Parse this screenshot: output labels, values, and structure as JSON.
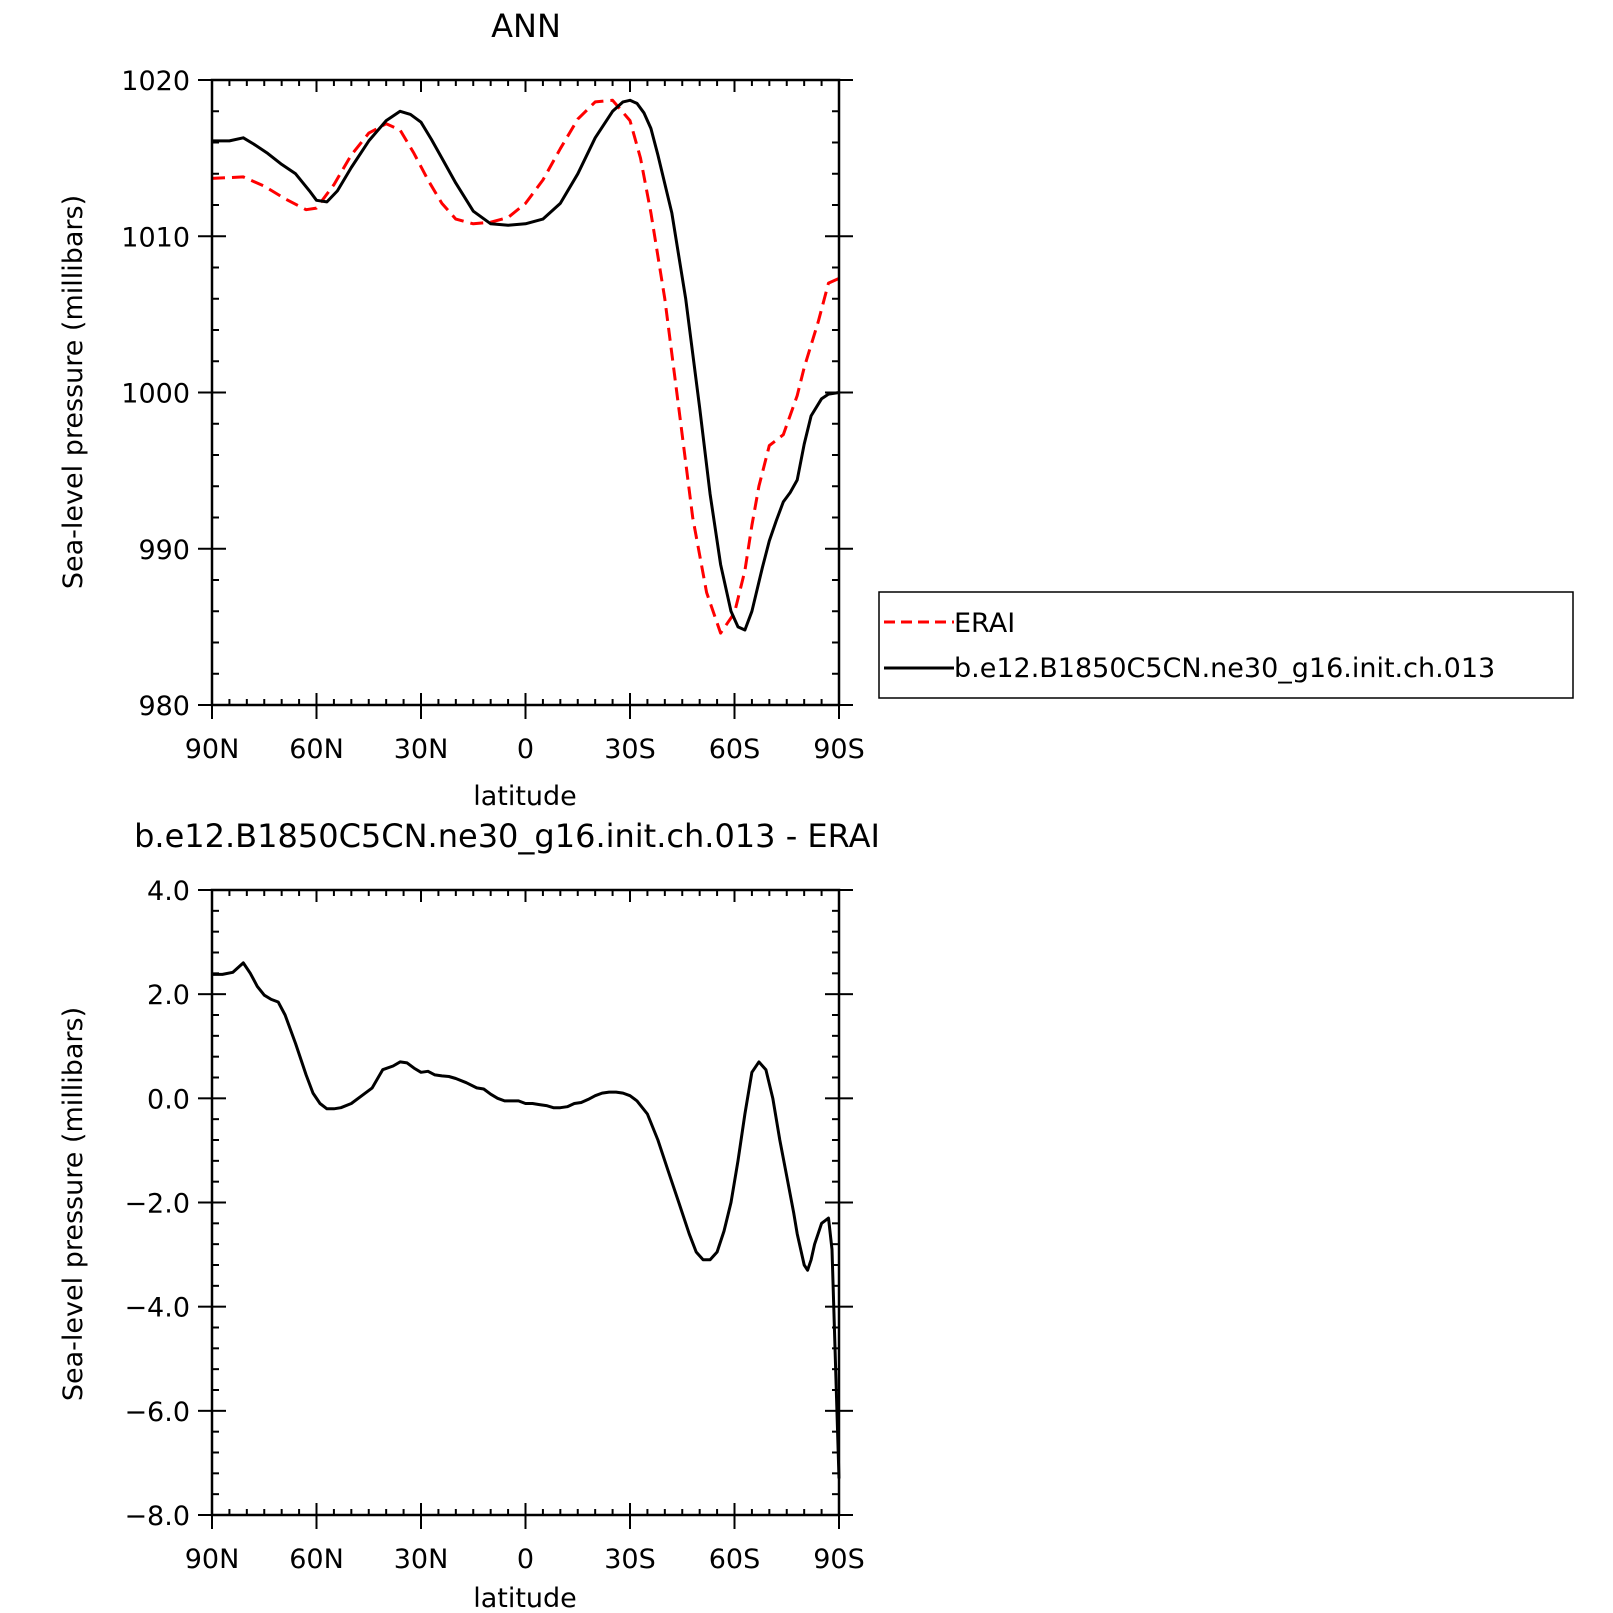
{
  "chart_data": [
    {
      "type": "line",
      "title": "ANN",
      "xlabel": "latitude",
      "ylabel": "Sea-level pressure (millibars)",
      "xlim": [
        90,
        -90
      ],
      "ylim": [
        980,
        1020
      ],
      "x_ticks": [
        90,
        60,
        30,
        0,
        -30,
        -60,
        -90
      ],
      "x_tick_labels": [
        "90N",
        "60N",
        "30N",
        "0",
        "30S",
        "60S",
        "90S"
      ],
      "y_ticks": [
        1020,
        1010,
        1000,
        990,
        980
      ],
      "y_tick_labels": [
        "1020",
        "1010",
        "1000",
        "990",
        "980"
      ],
      "grid": false,
      "legend_position": "right",
      "series": [
        {
          "name": "ERAI",
          "color": "#ff0000",
          "style": "dashed",
          "x": [
            90,
            81,
            75,
            69,
            63,
            60,
            55,
            50,
            45,
            40,
            36,
            32,
            28,
            24,
            20,
            15,
            10,
            5,
            0,
            -5,
            -10,
            -15,
            -20,
            -25,
            -30,
            -33,
            -36,
            -40,
            -44,
            -48,
            -52,
            -56,
            -60,
            -63,
            -65,
            -67,
            -70,
            -74,
            -78,
            -80,
            -84,
            -87,
            -90
          ],
          "y": [
            1013.7,
            1013.8,
            1013.2,
            1012.4,
            1011.7,
            1011.8,
            1013.3,
            1015.2,
            1016.6,
            1017.2,
            1016.8,
            1015.3,
            1013.6,
            1012.1,
            1011.1,
            1010.8,
            1010.9,
            1011.2,
            1012.1,
            1013.6,
            1015.6,
            1017.5,
            1018.6,
            1018.7,
            1017.4,
            1015.0,
            1011.5,
            1006.0,
            999.0,
            992.0,
            987.2,
            984.6,
            985.9,
            988.6,
            991.5,
            994.0,
            996.6,
            997.3,
            999.8,
            1001.6,
            1004.5,
            1007.0,
            1007.3
          ]
        },
        {
          "name": "b.e12.B1850C5CN.ne30_g16.init.ch.013",
          "color": "#000000",
          "style": "solid",
          "x": [
            90,
            85,
            81,
            78,
            74,
            70,
            66,
            62,
            60,
            57,
            54,
            50,
            45,
            40,
            36,
            33,
            30,
            27,
            24,
            20,
            15,
            10,
            5,
            0,
            -5,
            -10,
            -15,
            -20,
            -25,
            -28,
            -30,
            -32,
            -34,
            -36,
            -38,
            -42,
            -46,
            -50,
            -53,
            -56,
            -59,
            -61,
            -63,
            -65,
            -68,
            -70,
            -72,
            -74,
            -76,
            -78,
            -80,
            -82,
            -85,
            -87,
            -90
          ],
          "y": [
            1016.1,
            1016.1,
            1016.3,
            1015.9,
            1015.3,
            1014.6,
            1014.0,
            1012.9,
            1012.3,
            1012.2,
            1012.9,
            1014.4,
            1016.1,
            1017.4,
            1018.0,
            1017.8,
            1017.3,
            1016.2,
            1015.0,
            1013.4,
            1011.6,
            1010.8,
            1010.7,
            1010.8,
            1011.1,
            1012.1,
            1014.0,
            1016.3,
            1018.0,
            1018.6,
            1018.7,
            1018.5,
            1017.9,
            1016.9,
            1015.2,
            1011.5,
            1006.0,
            999.0,
            993.5,
            989.0,
            986.0,
            985.0,
            984.8,
            986.0,
            988.8,
            990.5,
            991.8,
            993.0,
            993.6,
            994.4,
            996.7,
            998.5,
            999.6,
            999.9,
            1000.0
          ]
        }
      ]
    },
    {
      "type": "line",
      "title": "b.e12.B1850C5CN.ne30_g16.init.ch.013 - ERAI",
      "xlabel": "latitude",
      "ylabel": "Sea-level pressure (millibars)",
      "xlim": [
        90,
        -90
      ],
      "ylim": [
        -8,
        4
      ],
      "x_ticks": [
        90,
        60,
        30,
        0,
        -30,
        -60,
        -90
      ],
      "x_tick_labels": [
        "90N",
        "60N",
        "30N",
        "0",
        "30S",
        "60S",
        "90S"
      ],
      "y_ticks": [
        4,
        2,
        0,
        -2,
        -4,
        -6,
        -8
      ],
      "y_tick_labels": [
        "4.0",
        "2.0",
        "0.0",
        "−2.0",
        "−4.0",
        "−6.0",
        "−8.0"
      ],
      "grid": false,
      "series": [
        {
          "color": "#000000",
          "style": "solid",
          "x": [
            90,
            87,
            84,
            81,
            79,
            77,
            75,
            73,
            71,
            69,
            66,
            63,
            61,
            59,
            57,
            55,
            53,
            50,
            47,
            44,
            41,
            38,
            36,
            34,
            32,
            30,
            28,
            26,
            24,
            22,
            20,
            17,
            14,
            12,
            10,
            8,
            6,
            4,
            2,
            0,
            -2,
            -4,
            -6,
            -8,
            -10,
            -12,
            -14,
            -16,
            -18,
            -20,
            -22,
            -24,
            -26,
            -28,
            -30,
            -32,
            -35,
            -38,
            -41,
            -44,
            -47,
            -49,
            -51,
            -53,
            -55,
            -57,
            -59,
            -61,
            -63,
            -65,
            -67,
            -69,
            -71,
            -73,
            -75,
            -77,
            -78,
            -79,
            -80,
            -81,
            -82,
            -83,
            -84,
            -85,
            -86,
            -87,
            -88,
            -90
          ],
          "y": [
            2.38,
            2.38,
            2.42,
            2.6,
            2.4,
            2.15,
            1.98,
            1.9,
            1.85,
            1.6,
            1.05,
            0.45,
            0.1,
            -0.1,
            -0.2,
            -0.2,
            -0.18,
            -0.1,
            0.05,
            0.2,
            0.55,
            0.62,
            0.7,
            0.68,
            0.58,
            0.5,
            0.52,
            0.45,
            0.43,
            0.42,
            0.38,
            0.3,
            0.2,
            0.18,
            0.08,
            0.0,
            -0.05,
            -0.05,
            -0.05,
            -0.1,
            -0.1,
            -0.12,
            -0.14,
            -0.18,
            -0.18,
            -0.16,
            -0.1,
            -0.08,
            -0.02,
            0.05,
            0.1,
            0.12,
            0.12,
            0.1,
            0.05,
            -0.05,
            -0.3,
            -0.8,
            -1.4,
            -2.0,
            -2.6,
            -2.95,
            -3.1,
            -3.1,
            -2.95,
            -2.55,
            -2.0,
            -1.2,
            -0.3,
            0.5,
            0.7,
            0.55,
            0.0,
            -0.8,
            -1.5,
            -2.2,
            -2.6,
            -2.9,
            -3.2,
            -3.3,
            -3.1,
            -2.8,
            -2.6,
            -2.4,
            -2.35,
            -2.3,
            -2.9,
            -7.3
          ]
        }
      ]
    }
  ]
}
